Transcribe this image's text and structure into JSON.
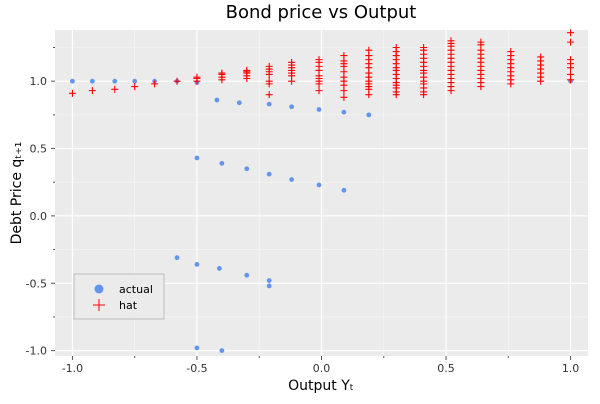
{
  "chart_data": {
    "type": "scatter",
    "title": "Bond price vs Output",
    "xlabel": "Output Yₜ",
    "ylabel": "Debt Price qₜ₊₁",
    "xlim": [
      -1.07,
      1.07
    ],
    "ylim": [
      -1.04,
      1.38
    ],
    "xticks": [
      -1.0,
      -0.5,
      0.0,
      0.5,
      1.0
    ],
    "xtick_labels": [
      "-1.0",
      "-0.5",
      "0.0",
      "0.5",
      "1.0"
    ],
    "yticks": [
      -1.0,
      -0.5,
      0.0,
      0.5,
      1.0
    ],
    "ytick_labels": [
      "-1.0",
      "-0.5",
      "0.0",
      "0.5",
      "1.0"
    ],
    "grid": true,
    "background": "#ebebeb",
    "legend_position": "lower-left",
    "series": [
      {
        "name": "actual",
        "marker": "circle",
        "color": "#6495ed",
        "x": [
          -1.0,
          -0.92,
          -0.83,
          -0.75,
          -0.67,
          -0.58,
          -0.5,
          -0.42,
          -0.33,
          -0.21,
          -0.12,
          -0.01,
          0.09,
          0.19,
          1.0,
          -0.5,
          -0.4,
          -0.3,
          -0.21,
          -0.12,
          -0.01,
          0.09,
          -0.58,
          -0.5,
          -0.41,
          -0.3,
          -0.21,
          -0.21,
          -0.5,
          -0.4
        ],
        "y": [
          1.0,
          1.0,
          1.0,
          1.0,
          1.0,
          1.0,
          0.99,
          0.86,
          0.84,
          0.83,
          0.81,
          0.79,
          0.77,
          0.75,
          1.0,
          0.43,
          0.39,
          0.35,
          0.31,
          0.27,
          0.23,
          0.19,
          -0.31,
          -0.36,
          -0.39,
          -0.44,
          -0.48,
          -0.52,
          -0.98,
          -1.0
        ]
      },
      {
        "name": "hat",
        "marker": "plus",
        "color": "#ff0000",
        "x": [
          -1.0,
          -0.92,
          -0.83,
          -0.75,
          -0.67,
          -0.58,
          -0.5,
          -0.5,
          -0.5,
          -0.4,
          -0.4,
          -0.4,
          -0.4,
          -0.3,
          -0.3,
          -0.3,
          -0.3,
          -0.3,
          -0.21,
          -0.21,
          -0.21,
          -0.21,
          -0.21,
          -0.21,
          -0.21,
          -0.12,
          -0.12,
          -0.12,
          -0.12,
          -0.12,
          -0.12,
          -0.12,
          -0.01,
          -0.01,
          -0.01,
          -0.01,
          -0.01,
          -0.01,
          -0.01,
          -0.01,
          -0.01,
          0.09,
          0.09,
          0.09,
          0.09,
          0.09,
          0.09,
          0.09,
          0.09,
          0.09,
          0.09,
          0.19,
          0.19,
          0.19,
          0.19,
          0.19,
          0.19,
          0.19,
          0.19,
          0.19,
          0.19,
          0.19,
          0.19,
          0.3,
          0.3,
          0.3,
          0.3,
          0.3,
          0.3,
          0.3,
          0.3,
          0.3,
          0.3,
          0.3,
          0.3,
          0.3,
          0.3,
          0.41,
          0.41,
          0.41,
          0.41,
          0.41,
          0.41,
          0.41,
          0.41,
          0.41,
          0.41,
          0.41,
          0.41,
          0.41,
          0.41,
          0.52,
          0.52,
          0.52,
          0.52,
          0.52,
          0.52,
          0.52,
          0.52,
          0.52,
          0.52,
          0.52,
          0.52,
          0.52,
          0.52,
          0.64,
          0.64,
          0.64,
          0.64,
          0.64,
          0.64,
          0.64,
          0.64,
          0.64,
          0.64,
          0.64,
          0.64,
          0.76,
          0.76,
          0.76,
          0.76,
          0.76,
          0.76,
          0.76,
          0.76,
          0.76,
          0.88,
          0.88,
          0.88,
          0.88,
          0.88,
          0.88,
          0.88,
          1.0,
          1.0,
          1.0,
          1.0,
          1.0,
          1.0,
          1.0
        ],
        "y": [
          0.91,
          0.93,
          0.94,
          0.96,
          0.98,
          1.0,
          1.0,
          1.02,
          1.03,
          1.01,
          1.03,
          1.05,
          1.06,
          1.02,
          1.04,
          1.06,
          1.07,
          1.08,
          0.98,
          1.0,
          1.05,
          1.07,
          1.09,
          1.11,
          0.9,
          1.0,
          1.04,
          1.08,
          1.1,
          1.12,
          1.14,
          1.06,
          0.93,
          0.98,
          1.0,
          1.02,
          1.04,
          1.08,
          1.11,
          1.14,
          1.16,
          0.88,
          0.93,
          0.97,
          1.0,
          1.03,
          1.07,
          1.11,
          1.13,
          1.15,
          1.19,
          0.9,
          0.94,
          0.96,
          0.98,
          1.0,
          1.03,
          1.06,
          1.1,
          1.13,
          1.16,
          1.19,
          1.23,
          0.9,
          0.92,
          0.95,
          0.97,
          0.99,
          1.02,
          1.05,
          1.08,
          1.1,
          1.13,
          1.16,
          1.19,
          1.22,
          1.25,
          0.9,
          0.92,
          0.95,
          0.98,
          1.0,
          1.03,
          1.06,
          1.08,
          1.11,
          1.14,
          1.17,
          1.2,
          1.23,
          1.25,
          0.93,
          0.96,
          0.99,
          1.02,
          1.05,
          1.08,
          1.11,
          1.14,
          1.17,
          1.2,
          1.23,
          1.26,
          1.28,
          1.3,
          0.96,
          0.99,
          1.02,
          1.05,
          1.08,
          1.11,
          1.14,
          1.17,
          1.2,
          1.23,
          1.27,
          1.29,
          0.98,
          1.01,
          1.04,
          1.07,
          1.1,
          1.13,
          1.16,
          1.19,
          1.22,
          1.0,
          1.03,
          1.06,
          1.09,
          1.12,
          1.15,
          1.18,
          1.01,
          1.05,
          1.1,
          1.13,
          1.16,
          1.29,
          1.36
        ]
      }
    ]
  }
}
